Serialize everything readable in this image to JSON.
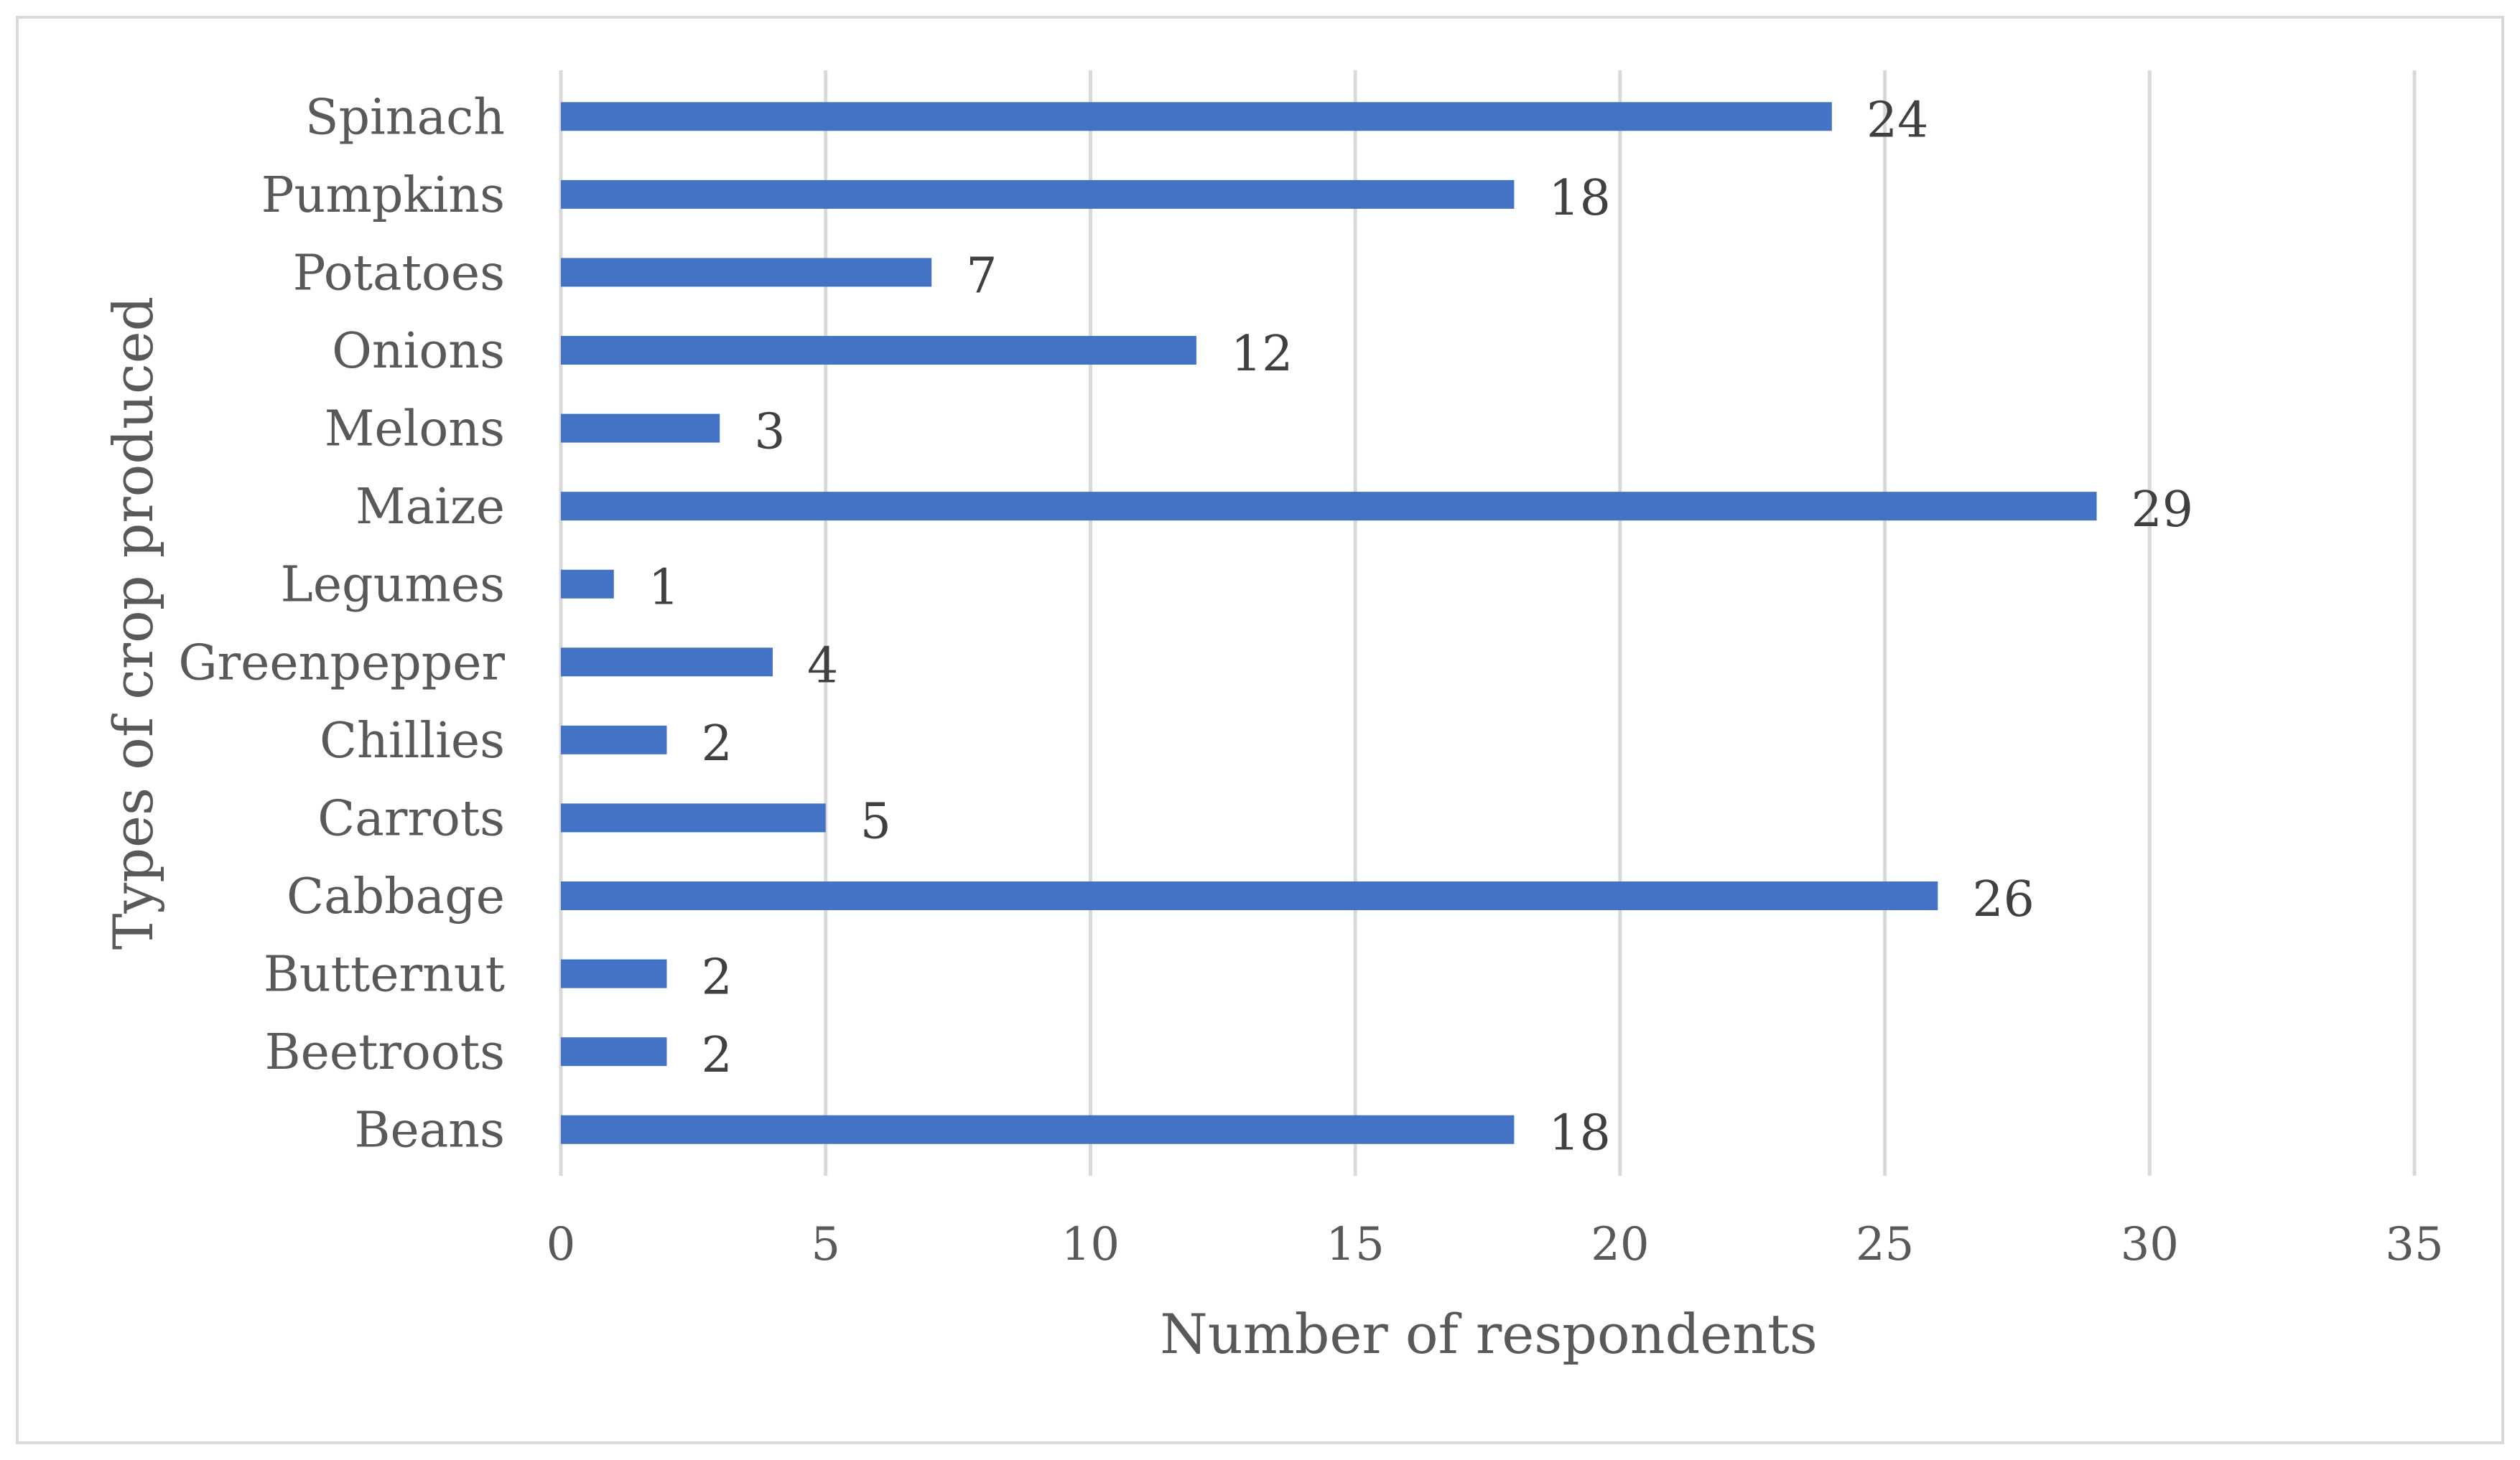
{
  "chart_data": {
    "type": "bar",
    "orientation": "horizontal",
    "categories": [
      "Beans",
      "Beetroots",
      "Butternut",
      "Cabbage",
      "Carrots",
      "Chillies",
      "Greenpepper",
      "Legumes",
      "Maize",
      "Melons",
      "Onions",
      "Potatoes",
      "Pumpkins",
      "Spinach"
    ],
    "values": [
      18,
      2,
      2,
      26,
      5,
      2,
      4,
      1,
      29,
      3,
      12,
      7,
      18,
      24
    ],
    "title": "",
    "xlabel": "Number of respondents",
    "ylabel": "Types of  crop produced",
    "xlim": [
      0,
      35
    ],
    "xticks": [
      0,
      5,
      10,
      15,
      20,
      25,
      30,
      35
    ],
    "data_labels": true,
    "grid": "vertical",
    "legend": "none",
    "bar_color": "#4472C4",
    "grid_color": "#d9d9d9",
    "text_color": "#595959"
  }
}
